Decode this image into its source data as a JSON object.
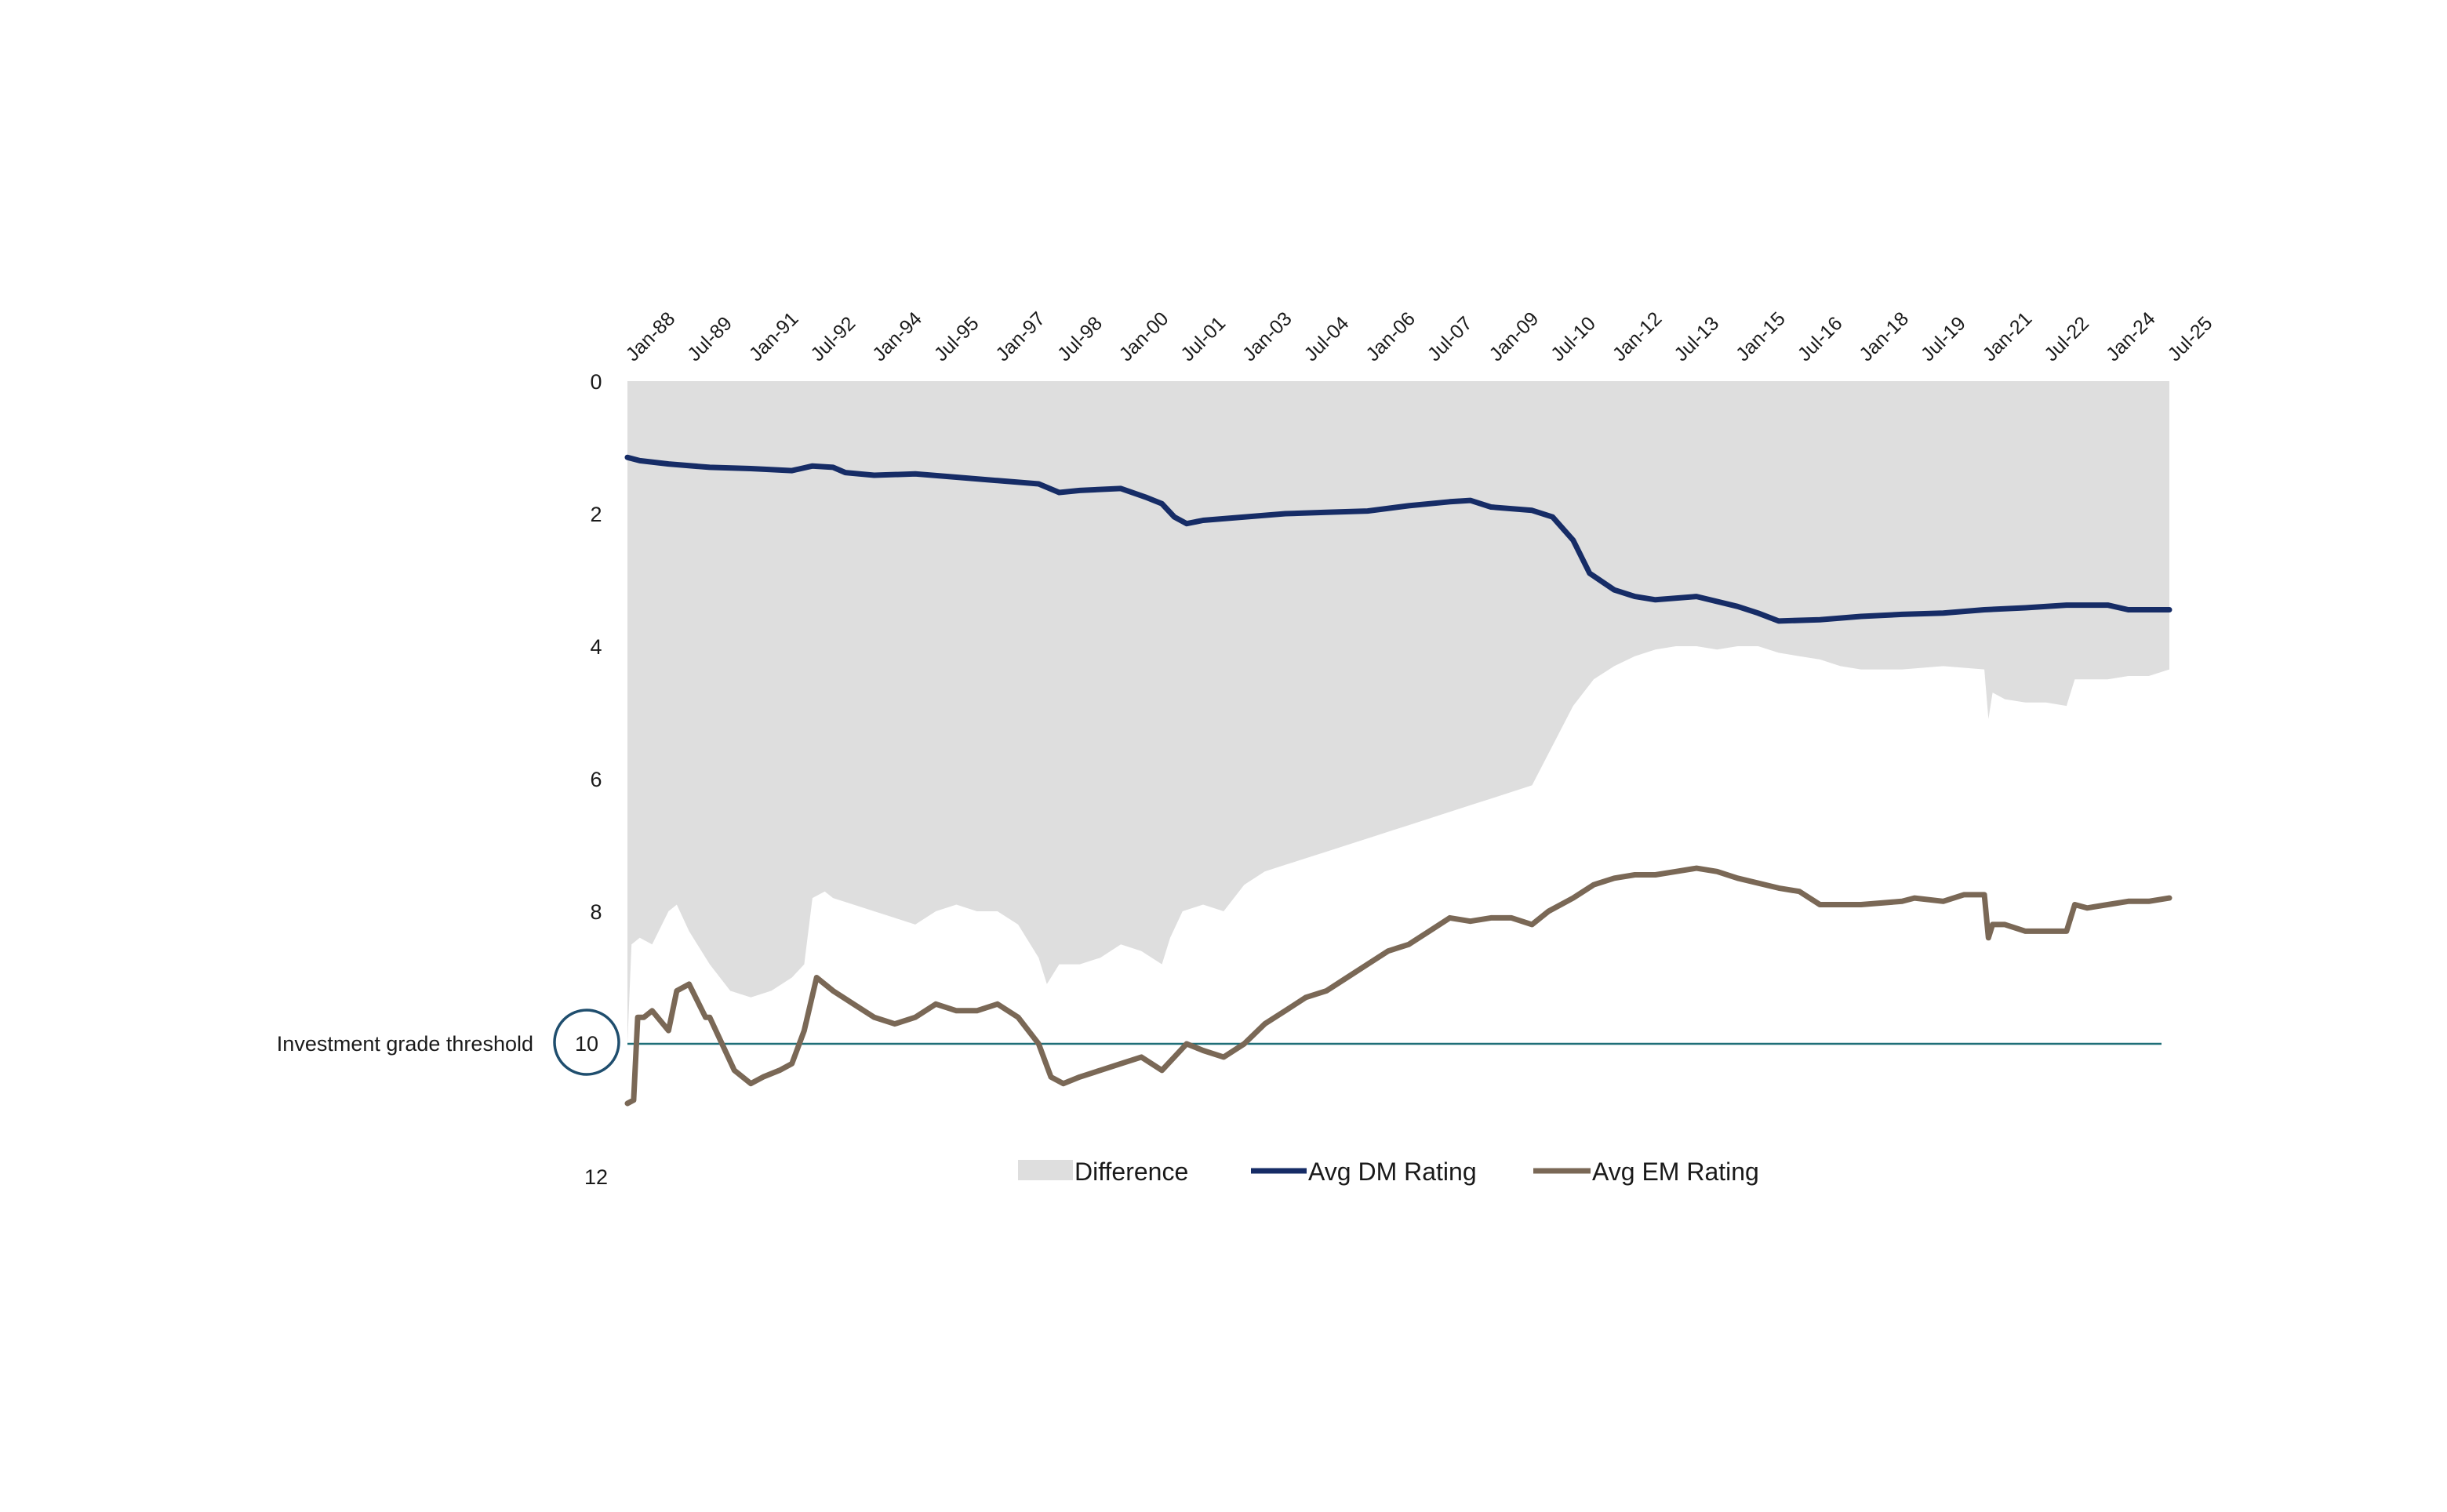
{
  "chart_data": {
    "type": "line",
    "title": "",
    "xlabel": "",
    "ylabel": "",
    "y_inverted": true,
    "ylim": [
      0,
      12
    ],
    "y_ticks": [
      "0",
      "2",
      "4",
      "6",
      "8",
      "10",
      "12"
    ],
    "x_tick_labels": [
      "Jan-88",
      "Jul-89",
      "Jan-91",
      "Jul-92",
      "Jan-94",
      "Jul-95",
      "Jan-97",
      "Jul-98",
      "Jan-00",
      "Jul-01",
      "Jan-03",
      "Jul-04",
      "Jan-06",
      "Jul-07",
      "Jan-09",
      "Jul-10",
      "Jan-12",
      "Jul-13",
      "Jan-15",
      "Jul-16",
      "Jan-18",
      "Jul-19",
      "Jan-21",
      "Jul-22",
      "Jan-24",
      "Jul-25"
    ],
    "x_range": [
      1988.0,
      2025.5
    ],
    "threshold": {
      "label": "Investment grade threshold",
      "value": 10,
      "marker_label": "10",
      "color": "#1f6f78"
    },
    "legend": {
      "position": "bottom",
      "entries": [
        "Difference",
        "Avg DM Rating",
        "Avg EM Rating"
      ]
    },
    "colors": {
      "difference": "#dedede",
      "dm": "#162c66",
      "em": "#7a6856",
      "threshold": "#1f6f78",
      "circle": "#1f4e6e",
      "text": "#1a1a1a"
    },
    "series": [
      {
        "name": "Avg DM Rating",
        "x": [
          1988.0,
          1988.3,
          1989.0,
          1990.0,
          1991.0,
          1992.0,
          1992.5,
          1993.0,
          1993.3,
          1994.0,
          1995.0,
          1996.0,
          1997.0,
          1998.0,
          1998.5,
          1999.0,
          2000.0,
          2000.6,
          2001.0,
          2001.3,
          2001.6,
          2002.0,
          2003.0,
          2004.0,
          2005.0,
          2006.0,
          2007.0,
          2008.0,
          2008.5,
          2009.0,
          2010.0,
          2010.5,
          2011.0,
          2011.4,
          2012.0,
          2012.5,
          2013.0,
          2014.0,
          2015.0,
          2015.5,
          2016.0,
          2017.0,
          2018.0,
          2019.0,
          2020.0,
          2021.0,
          2022.0,
          2023.0,
          2024.0,
          2024.5,
          2025.0,
          2025.5
        ],
        "values": [
          1.15,
          1.2,
          1.25,
          1.3,
          1.32,
          1.35,
          1.28,
          1.3,
          1.38,
          1.42,
          1.4,
          1.45,
          1.5,
          1.55,
          1.68,
          1.65,
          1.62,
          1.75,
          1.85,
          2.05,
          2.15,
          2.1,
          2.05,
          2.0,
          1.98,
          1.96,
          1.88,
          1.82,
          1.8,
          1.9,
          1.95,
          2.05,
          2.4,
          2.9,
          3.15,
          3.25,
          3.3,
          3.25,
          3.4,
          3.5,
          3.62,
          3.6,
          3.55,
          3.52,
          3.5,
          3.45,
          3.42,
          3.38,
          3.38,
          3.45,
          3.45,
          3.45
        ]
      },
      {
        "name": "Avg EM Rating",
        "x": [
          1988.0,
          1988.15,
          1988.25,
          1988.4,
          1988.6,
          1989.0,
          1989.2,
          1989.5,
          1989.9,
          1990.0,
          1990.3,
          1990.6,
          1991.0,
          1991.3,
          1991.7,
          1992.0,
          1992.3,
          1992.6,
          1993.0,
          1993.5,
          1994.0,
          1994.5,
          1995.0,
          1995.5,
          1996.0,
          1996.5,
          1997.0,
          1997.5,
          1998.0,
          1998.3,
          1998.6,
          1999.0,
          1999.5,
          2000.0,
          2000.5,
          2001.0,
          2001.3,
          2001.6,
          2002.0,
          2002.5,
          2003.0,
          2003.5,
          2004.0,
          2004.5,
          2005.0,
          2005.5,
          2006.0,
          2006.5,
          2007.0,
          2007.5,
          2008.0,
          2008.5,
          2009.0,
          2009.5,
          2010.0,
          2010.4,
          2011.0,
          2011.5,
          2012.0,
          2012.5,
          2013.0,
          2013.5,
          2014.0,
          2014.5,
          2015.0,
          2016.0,
          2016.5,
          2017.0,
          2018.0,
          2019.0,
          2019.3,
          2020.0,
          2020.5,
          2021.0,
          2021.1,
          2021.2,
          2021.5,
          2022.0,
          2022.5,
          2023.0,
          2023.2,
          2023.5,
          2024.0,
          2024.5,
          2025.0,
          2025.5
        ],
        "values": [
          10.9,
          10.85,
          9.6,
          9.6,
          9.5,
          9.8,
          9.2,
          9.1,
          9.6,
          9.6,
          10.0,
          10.4,
          10.6,
          10.5,
          10.4,
          10.3,
          9.8,
          9.0,
          9.2,
          9.4,
          9.6,
          9.7,
          9.6,
          9.4,
          9.5,
          9.5,
          9.4,
          9.6,
          10.0,
          10.5,
          10.6,
          10.5,
          10.4,
          10.3,
          10.2,
          10.4,
          10.2,
          10.0,
          10.1,
          10.2,
          10.0,
          9.7,
          9.5,
          9.3,
          9.2,
          9.0,
          8.8,
          8.6,
          8.5,
          8.3,
          8.1,
          8.15,
          8.1,
          8.1,
          8.2,
          8.0,
          7.8,
          7.6,
          7.5,
          7.45,
          7.45,
          7.4,
          7.35,
          7.4,
          7.5,
          7.65,
          7.7,
          7.9,
          7.9,
          7.85,
          7.8,
          7.85,
          7.75,
          7.75,
          8.4,
          8.2,
          8.2,
          8.3,
          8.3,
          8.3,
          7.9,
          7.95,
          7.9,
          7.85,
          7.85,
          7.8
        ]
      },
      {
        "name": "Difference",
        "x": [
          1988.0,
          1988.1,
          1988.3,
          1988.6,
          1989.0,
          1989.2,
          1989.5,
          1990.0,
          1990.5,
          1991.0,
          1991.5,
          1992.0,
          1992.3,
          1992.5,
          1992.8,
          1993.0,
          1993.5,
          1994.0,
          1994.5,
          1995.0,
          1995.5,
          1996.0,
          1996.5,
          1997.0,
          1997.5,
          1998.0,
          1998.2,
          1998.5,
          1999.0,
          1999.5,
          2000.0,
          2000.5,
          2001.0,
          2001.2,
          2001.5,
          2002.0,
          2002.5,
          2003.0,
          2003.5,
          2004.0,
          2004.5,
          2005.0,
          2005.5,
          2006.0,
          2006.5,
          2007.0,
          2007.5,
          2008.0,
          2008.5,
          2009.0,
          2009.5,
          2010.0,
          2010.5,
          2011.0,
          2011.5,
          2012.0,
          2012.5,
          2013.0,
          2013.5,
          2014.0,
          2014.5,
          2015.0,
          2015.5,
          2016.0,
          2016.5,
          2017.0,
          2017.5,
          2018.0,
          2019.0,
          2020.0,
          2021.0,
          2021.1,
          2021.2,
          2021.5,
          2022.0,
          2022.5,
          2023.0,
          2023.2,
          2023.5,
          2024.0,
          2024.5,
          2025.0,
          2025.5
        ],
        "values": [
          10.0,
          8.5,
          8.4,
          8.5,
          8.0,
          7.9,
          8.3,
          8.8,
          9.2,
          9.3,
          9.2,
          9.0,
          8.8,
          7.8,
          7.7,
          7.8,
          7.9,
          8.0,
          8.1,
          8.2,
          8.0,
          7.9,
          8.0,
          8.0,
          8.2,
          8.7,
          9.1,
          8.8,
          8.8,
          8.7,
          8.5,
          8.6,
          8.8,
          8.4,
          8.0,
          7.9,
          8.0,
          7.6,
          7.4,
          7.3,
          7.2,
          7.1,
          7.0,
          6.9,
          6.8,
          6.7,
          6.6,
          6.5,
          6.4,
          6.3,
          6.2,
          6.1,
          5.5,
          4.9,
          4.5,
          4.3,
          4.15,
          4.05,
          4.0,
          4.0,
          4.05,
          4.0,
          4.0,
          4.1,
          4.15,
          4.2,
          4.3,
          4.35,
          4.35,
          4.3,
          4.35,
          5.1,
          4.7,
          4.8,
          4.85,
          4.85,
          4.9,
          4.5,
          4.5,
          4.5,
          4.45,
          4.45,
          4.35
        ]
      }
    ]
  }
}
